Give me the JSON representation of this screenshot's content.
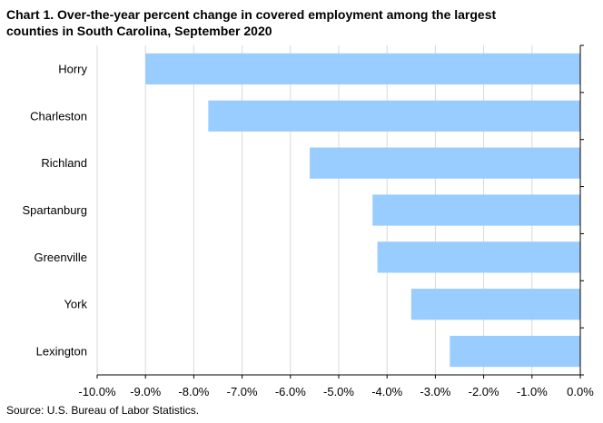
{
  "chart_data": {
    "type": "bar",
    "orientation": "horizontal",
    "title_line1": "Chart 1. Over-the-year percent change in covered employment  among  the largest",
    "title_line2": "counties in South Carolina,  September 2020",
    "categories": [
      "Horry",
      "Charleston",
      "Richland",
      "Spartanburg",
      "Greenville",
      "York",
      "Lexington"
    ],
    "values": [
      -9.0,
      -7.7,
      -5.6,
      -4.3,
      -4.2,
      -3.5,
      -2.7
    ],
    "xlim": [
      -10.0,
      0.0
    ],
    "x_ticks": [
      -10.0,
      -9.0,
      -8.0,
      -7.0,
      -6.0,
      -5.0,
      -4.0,
      -3.0,
      -2.0,
      -1.0,
      0.0
    ],
    "x_tick_labels": [
      "-10.0%",
      "-9.0%",
      "-8.0%",
      "-7.0%",
      "-6.0%",
      "-5.0%",
      "-4.0%",
      "-3.0%",
      "-2.0%",
      "-1.0%",
      "0.0%"
    ],
    "xlabel": "",
    "ylabel": "",
    "grid": "vertical",
    "bar_color": "#99ccff",
    "grid_color": "#d9d9d9",
    "axis_color": "#000000"
  },
  "source": "Source: U.S. Bureau of Labor Statistics."
}
